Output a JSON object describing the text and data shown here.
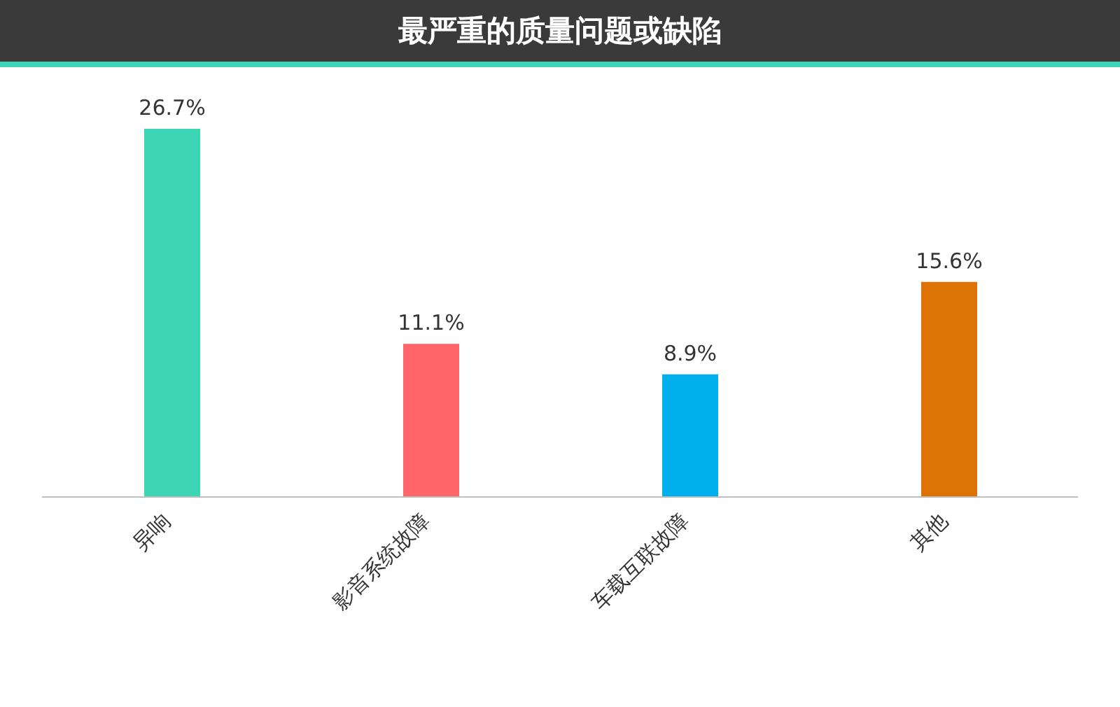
{
  "chart_data": {
    "type": "bar",
    "title": "最严重的质量问题或缺陷",
    "categories": [
      "异响",
      "影音系统故障",
      "车载互联故障",
      "其他"
    ],
    "values": [
      26.7,
      11.1,
      8.9,
      15.6
    ],
    "colors": [
      "#3dd6b5",
      "#ff6469",
      "#00b0ec",
      "#dd7305"
    ],
    "value_labels": [
      "26.7%",
      "11.1%",
      "8.9%",
      "15.6%"
    ],
    "grid": false,
    "legend": false
  }
}
